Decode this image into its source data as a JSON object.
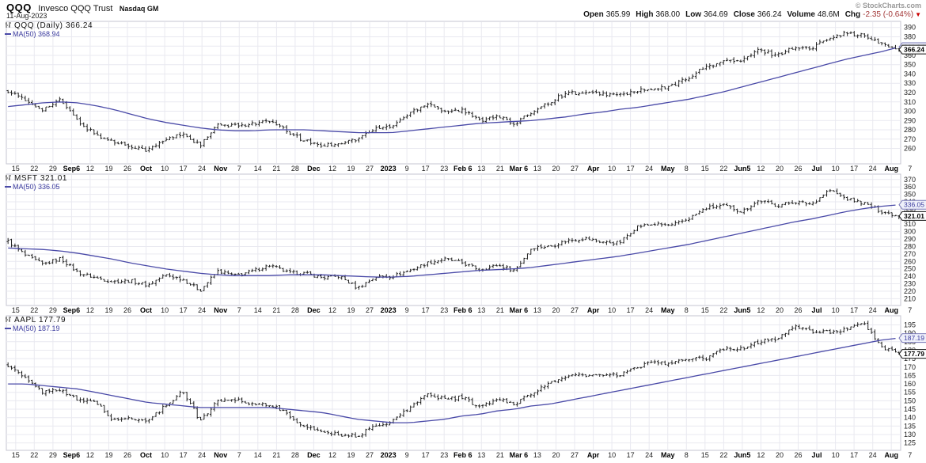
{
  "header": {
    "symbol": "QQQ",
    "name": "Invesco QQQ Trust",
    "exchange": "Nasdaq GM",
    "date": "11-Aug-2023",
    "copyright": "© StockCharts.com",
    "quote_fields": [
      {
        "label": "Open",
        "value": "365.99",
        "neg": false
      },
      {
        "label": "High",
        "value": "368.00",
        "neg": false
      },
      {
        "label": "Low",
        "value": "364.69",
        "neg": false
      },
      {
        "label": "Close",
        "value": "366.24",
        "neg": false
      },
      {
        "label": "Volume",
        "value": "48.6M",
        "neg": false
      },
      {
        "label": "Chg",
        "value": "-2.35 (-0.64%)",
        "neg": true
      }
    ]
  },
  "colors": {
    "bar": "#222222",
    "ma_line": "#4a4aa8",
    "grid": "#e9e9f0",
    "frame": "#c5c5d0",
    "axis_text": "#222222",
    "ma_label": "#3a3a9e",
    "chg_negative": "#a33939",
    "chg_arrow": "#cc0000"
  },
  "x_labels": [
    "15",
    "22",
    "29",
    "Sep6",
    "12",
    "19",
    "26",
    "Oct",
    "10",
    "17",
    "24",
    "Nov",
    "7",
    "14",
    "21",
    "28",
    "Dec",
    "12",
    "19",
    "27",
    "2023",
    "9",
    "17",
    "23",
    "Feb 6",
    "13",
    "21",
    "Mar 6",
    "13",
    "20",
    "27",
    "Apr",
    "10",
    "17",
    "24",
    "May",
    "8",
    "15",
    "22",
    "Jun5",
    "12",
    "20",
    "26",
    "Jul",
    "10",
    "17",
    "24",
    "Aug",
    "7"
  ],
  "panels": [
    {
      "legend_title": "QQQ (Daily)",
      "legend_value": "366.24",
      "ma_label": "MA(50)",
      "ma_value": "368.94",
      "price_label": "366.24",
      "ma_price_label": "368.94"
    },
    {
      "legend_title": "MSFT",
      "legend_value": "321.01",
      "ma_label": "MA(50)",
      "ma_value": "336.05",
      "price_label": "321.01",
      "ma_price_label": "336.05"
    },
    {
      "legend_title": "AAPL",
      "legend_value": "177.79",
      "ma_label": "MA(50)",
      "ma_value": "187.19",
      "price_label": "177.79",
      "ma_price_label": "187.19"
    }
  ],
  "chart_data": [
    {
      "type": "bar",
      "style": "ohlc-daily",
      "title": "QQQ (Daily)",
      "last_close": 366.24,
      "ma50_last": 368.94,
      "ylim": [
        246,
        394
      ],
      "y_ticks": [
        390,
        380,
        370,
        360,
        350,
        340,
        330,
        320,
        310,
        300,
        290,
        280,
        270,
        260
      ],
      "x_range": "15-Aug-2022 to 11-Aug-2023",
      "close_weekly": [
        322,
        311,
        302,
        312,
        289,
        275,
        267,
        263,
        258,
        269,
        276,
        263,
        285,
        284,
        287,
        289,
        278,
        268,
        263,
        266,
        270,
        281,
        284,
        298,
        309,
        300,
        301,
        290,
        296,
        285,
        300,
        310,
        320,
        319,
        319,
        317,
        322,
        323,
        327,
        337,
        348,
        354,
        354,
        366,
        360,
        369,
        367,
        380,
        384,
        381,
        372,
        366.2
      ],
      "ma50_weekly": [
        305,
        307,
        309,
        310,
        309,
        306,
        302,
        297,
        292,
        288,
        285,
        282,
        280,
        279,
        279,
        280,
        280,
        280,
        279,
        278,
        277,
        277,
        277,
        279,
        281,
        283,
        285,
        287,
        288,
        289,
        290,
        292,
        294,
        297,
        299,
        302,
        304,
        307,
        310,
        313,
        317,
        321,
        326,
        331,
        336,
        341,
        346,
        351,
        356,
        360,
        364,
        368.9
      ]
    },
    {
      "type": "bar",
      "style": "ohlc-daily",
      "title": "MSFT",
      "last_close": 321.01,
      "ma50_last": 336.05,
      "ylim": [
        204,
        374
      ],
      "y_ticks": [
        370,
        360,
        350,
        340,
        330,
        320,
        310,
        300,
        290,
        280,
        270,
        260,
        250,
        240,
        230,
        220,
        210
      ],
      "x_range": "15-Aug-2022 to 11-Aug-2023",
      "close_weekly": [
        287,
        268,
        256,
        264,
        245,
        238,
        233,
        234,
        228,
        242,
        236,
        221,
        247,
        241,
        247,
        255,
        245,
        244,
        238,
        240,
        224,
        239,
        240,
        248,
        258,
        263,
        258,
        249,
        255,
        248,
        279,
        280,
        288,
        291,
        286,
        285,
        307,
        310,
        308,
        318,
        332,
        335,
        327,
        342,
        335,
        340,
        337,
        356,
        344,
        338,
        327,
        321
      ],
      "ma50_weekly": [
        278,
        277,
        276,
        274,
        271,
        267,
        263,
        258,
        254,
        250,
        247,
        244,
        242,
        241,
        241,
        241,
        242,
        242,
        242,
        241,
        240,
        239,
        239,
        240,
        242,
        244,
        246,
        248,
        249,
        250,
        252,
        255,
        258,
        261,
        264,
        267,
        271,
        275,
        279,
        283,
        288,
        293,
        298,
        303,
        308,
        313,
        317,
        322,
        327,
        331,
        334,
        336
      ]
    },
    {
      "type": "bar",
      "style": "ohlc-daily",
      "title": "AAPL",
      "last_close": 177.79,
      "ma50_last": 187.19,
      "ylim": [
        122,
        199
      ],
      "y_ticks": [
        195,
        190,
        185,
        180,
        175,
        170,
        165,
        160,
        155,
        150,
        145,
        140,
        135,
        130,
        125
      ],
      "x_range": "15-Aug-2022 to 11-Aug-2023",
      "close_weekly": [
        171,
        163,
        155,
        157,
        150,
        150,
        138,
        140,
        138,
        147,
        156,
        138,
        150,
        151,
        148,
        148,
        142,
        134,
        132,
        130,
        129,
        135,
        138,
        146,
        154,
        151,
        152,
        146,
        151,
        148,
        155,
        160,
        165,
        165,
        165,
        165,
        170,
        173,
        172,
        175,
        175,
        181,
        181,
        185,
        187,
        194,
        191,
        191,
        192,
        196,
        182,
        177.8
      ],
      "ma50_weekly": [
        160,
        160,
        159,
        158,
        157,
        155,
        153,
        151,
        149,
        148,
        147,
        146,
        146,
        146,
        146,
        146,
        145,
        144,
        143,
        141,
        139,
        138,
        137,
        137,
        138,
        139,
        141,
        142,
        144,
        145,
        147,
        148,
        150,
        152,
        154,
        156,
        158,
        160,
        162,
        164,
        166,
        168,
        170,
        172,
        174,
        176,
        178,
        180,
        182,
        184,
        186,
        187.2
      ]
    }
  ]
}
